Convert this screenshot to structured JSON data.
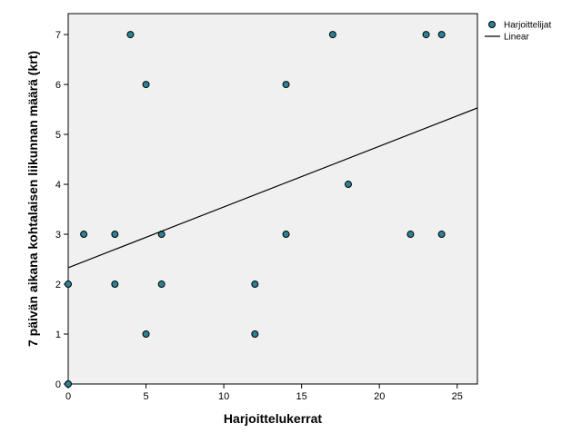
{
  "chart_data": {
    "type": "scatter",
    "x_label": "Harjoittelukerrat",
    "y_label": "7 päivän aikana kohtalaisen liikunnan määrä (krt)",
    "xlim": [
      0,
      26.3
    ],
    "ylim": [
      0,
      7.42
    ],
    "xticks": [
      0,
      5,
      10,
      15,
      20,
      25
    ],
    "yticks": [
      0,
      1,
      2,
      3,
      4,
      5,
      6,
      7
    ],
    "legend": "right",
    "series": [
      {
        "name": "Harjoittelijat",
        "type": "scatter",
        "color": "#2b8296",
        "x": [
          0,
          0,
          1,
          3,
          3,
          4,
          5,
          5,
          6,
          6,
          12,
          12,
          14,
          14,
          17,
          18,
          22,
          23,
          24,
          24
        ],
        "values": [
          0,
          2,
          3,
          3,
          2,
          7,
          6,
          1,
          3,
          2,
          2,
          1,
          6,
          3,
          7,
          4,
          3,
          7,
          7,
          3
        ]
      },
      {
        "name": "Linear",
        "type": "line",
        "color": "#000000",
        "x": [
          0,
          26.3
        ],
        "values": [
          2.33,
          5.53
        ]
      }
    ]
  }
}
